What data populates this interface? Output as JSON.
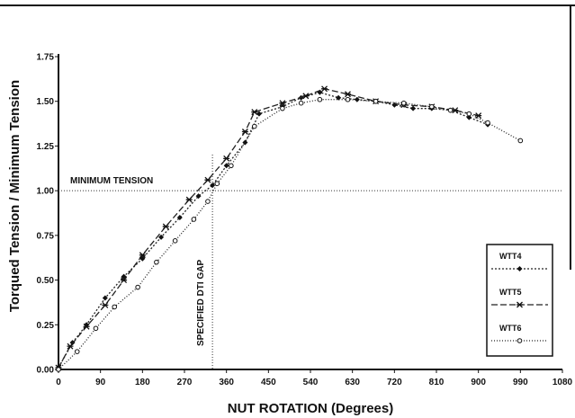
{
  "chart_data": {
    "type": "line",
    "title": "",
    "xlabel": "NUT ROTATION (Degrees)",
    "ylabel": "Torqued Tension / Minimum Tension",
    "xlim": [
      0,
      1080
    ],
    "ylim": [
      0,
      1.75
    ],
    "x_ticks": [
      "0",
      "90",
      "180",
      "270",
      "360",
      "450",
      "540",
      "630",
      "720",
      "810",
      "900",
      "990",
      "1080"
    ],
    "y_ticks": [
      "0.00",
      "0.25",
      "0.50",
      "0.75",
      "1.00",
      "1.25",
      "1.50",
      "1.75"
    ],
    "grid": false,
    "legend_position": "right",
    "reference_lines": [
      {
        "orientation": "horizontal",
        "value": 1.0,
        "label": "MINIMUM TENSION"
      },
      {
        "orientation": "vertical",
        "value": 330,
        "label": "SPECIFIED DTI GAP"
      }
    ],
    "series": [
      {
        "name": "WTT4",
        "color": "#222222",
        "dash": "2,2",
        "marker": "diamond",
        "points": [
          [
            0,
            0.01
          ],
          [
            30,
            0.15
          ],
          [
            60,
            0.25
          ],
          [
            100,
            0.4
          ],
          [
            140,
            0.52
          ],
          [
            180,
            0.62
          ],
          [
            220,
            0.74
          ],
          [
            260,
            0.85
          ],
          [
            300,
            0.97
          ],
          [
            330,
            1.03
          ],
          [
            360,
            1.14
          ],
          [
            400,
            1.27
          ],
          [
            430,
            1.43
          ],
          [
            480,
            1.47
          ],
          [
            520,
            1.52
          ],
          [
            560,
            1.55
          ],
          [
            600,
            1.52
          ],
          [
            640,
            1.51
          ],
          [
            680,
            1.5
          ],
          [
            720,
            1.48
          ],
          [
            760,
            1.46
          ],
          [
            800,
            1.46
          ],
          [
            840,
            1.45
          ],
          [
            880,
            1.41
          ],
          [
            920,
            1.37
          ]
        ]
      },
      {
        "name": "WTT5",
        "color": "#222222",
        "dash": "7,3",
        "marker": "star",
        "points": [
          [
            0,
            0.01
          ],
          [
            25,
            0.13
          ],
          [
            60,
            0.24
          ],
          [
            100,
            0.36
          ],
          [
            140,
            0.5
          ],
          [
            180,
            0.64
          ],
          [
            230,
            0.8
          ],
          [
            280,
            0.95
          ],
          [
            320,
            1.06
          ],
          [
            360,
            1.18
          ],
          [
            400,
            1.33
          ],
          [
            420,
            1.44
          ],
          [
            480,
            1.49
          ],
          [
            530,
            1.53
          ],
          [
            570,
            1.57
          ],
          [
            620,
            1.54
          ],
          [
            680,
            1.5
          ],
          [
            740,
            1.48
          ],
          [
            800,
            1.47
          ],
          [
            850,
            1.45
          ],
          [
            900,
            1.42
          ]
        ]
      },
      {
        "name": "WTT6",
        "color": "#222222",
        "dash": "1,2",
        "marker": "circle",
        "points": [
          [
            0,
            0.0
          ],
          [
            40,
            0.1
          ],
          [
            80,
            0.23
          ],
          [
            120,
            0.35
          ],
          [
            170,
            0.46
          ],
          [
            210,
            0.6
          ],
          [
            250,
            0.72
          ],
          [
            290,
            0.84
          ],
          [
            320,
            0.94
          ],
          [
            340,
            1.04
          ],
          [
            370,
            1.14
          ],
          [
            420,
            1.36
          ],
          [
            480,
            1.46
          ],
          [
            520,
            1.49
          ],
          [
            560,
            1.51
          ],
          [
            620,
            1.51
          ],
          [
            680,
            1.5
          ],
          [
            740,
            1.49
          ],
          [
            800,
            1.47
          ],
          [
            840,
            1.45
          ],
          [
            880,
            1.43
          ],
          [
            920,
            1.38
          ],
          [
            990,
            1.28
          ]
        ]
      }
    ]
  }
}
